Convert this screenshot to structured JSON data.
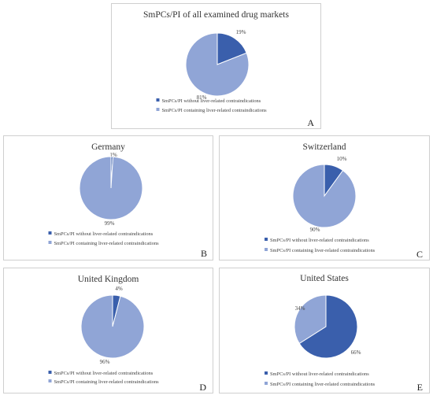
{
  "colors": {
    "without": "#3a5fac",
    "containing": "#90a5d6"
  },
  "chart_data": [
    {
      "type": "pie",
      "title": "SmPCs/PI of all examined drug markets",
      "letter": "A",
      "labels": [
        "SmPCs/PI without liver-related contraindications",
        "SmPCs/PI containing liver-related contraindications"
      ],
      "values": [
        19,
        81
      ],
      "value_labels": [
        "19%",
        "81%"
      ]
    },
    {
      "type": "pie",
      "title": "Germany",
      "letter": "B",
      "labels": [
        "SmPCs/PI without liver-related contraindications",
        "SmPCs/PI containing liver-related contraindications"
      ],
      "values": [
        1,
        99
      ],
      "value_labels": [
        "1%",
        "99%"
      ]
    },
    {
      "type": "pie",
      "title": "Switzerland",
      "letter": "C",
      "labels": [
        "SmPCs/PI without liver-related contraindications",
        "SmPCs/PI containing liver-related contraindications"
      ],
      "values": [
        10,
        90
      ],
      "value_labels": [
        "10%",
        "90%"
      ]
    },
    {
      "type": "pie",
      "title": "United Kingdom",
      "letter": "D",
      "labels": [
        "SmPCs/PI without liver-related contraindications",
        "SmPCs/PI containing liver-related contraindications"
      ],
      "values": [
        4,
        96
      ],
      "value_labels": [
        "4%",
        "96%"
      ]
    },
    {
      "type": "pie",
      "title": "United States",
      "letter": "E",
      "labels": [
        "SmPCs/PI without liver-related contraindications",
        "SmPCs/PI containing liver-related contraindications"
      ],
      "values": [
        66,
        34
      ],
      "value_labels": [
        "66%",
        "34%"
      ]
    }
  ]
}
